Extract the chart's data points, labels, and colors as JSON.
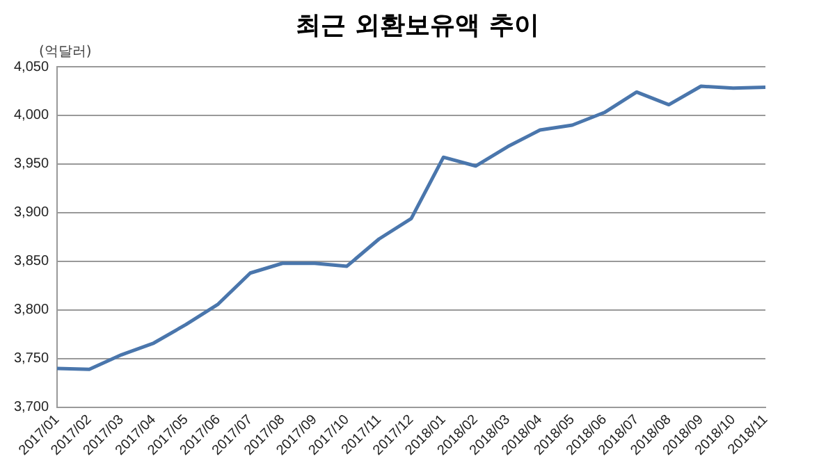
{
  "chart_data": {
    "type": "line",
    "title": "최근 외환보유액 추이",
    "ylabel": "(억달러)",
    "categories": [
      "2017/01",
      "2017/02",
      "2017/03",
      "2017/04",
      "2017/05",
      "2017/06",
      "2017/07",
      "2017/08",
      "2017/09",
      "2017/10",
      "2017/11",
      "2017/12",
      "2018/01",
      "2018/02",
      "2018/03",
      "2018/04",
      "2018/05",
      "2018/06",
      "2018/07",
      "2018/08",
      "2018/09",
      "2018/10",
      "2018/11"
    ],
    "series": [
      {
        "color": "#4a76ac",
        "values": [
          3740,
          3739,
          3754,
          3766,
          3785,
          3806,
          3838,
          3848,
          3848,
          3845,
          3873,
          3894,
          3957,
          3948,
          3968,
          3985,
          3990,
          4003,
          4024,
          4011,
          4030,
          4028,
          4029
        ]
      }
    ],
    "ylim": [
      3700,
      4050
    ],
    "yticks": [
      {
        "value": 3700,
        "label": "3,700"
      },
      {
        "value": 3750,
        "label": "3,750"
      },
      {
        "value": 3800,
        "label": "3,800"
      },
      {
        "value": 3850,
        "label": "3,850"
      },
      {
        "value": 3900,
        "label": "3,900"
      },
      {
        "value": 3950,
        "label": "3,950"
      },
      {
        "value": 4000,
        "label": "4,000"
      },
      {
        "value": 4050,
        "label": "4,050"
      }
    ],
    "grid": "y",
    "legend": false,
    "marker": "none",
    "line_style": "solid"
  }
}
